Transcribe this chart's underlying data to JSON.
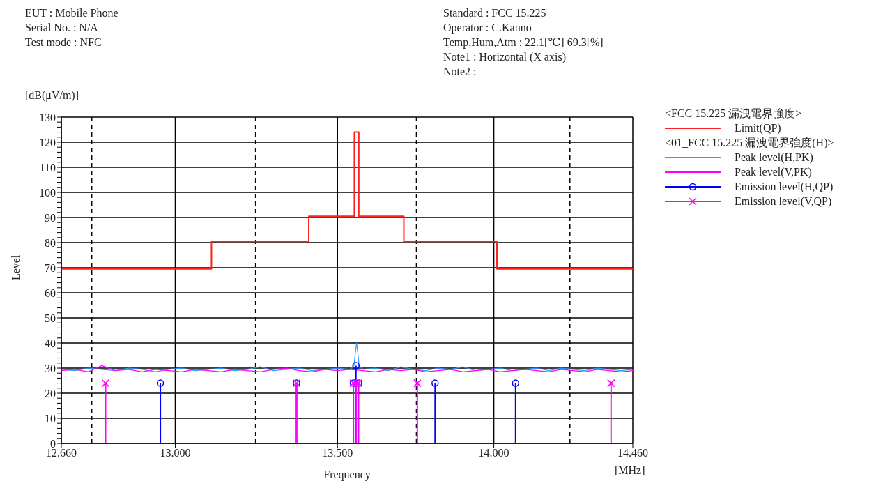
{
  "chart_data": {
    "type": "line",
    "xlabel": "Frequency",
    "ylabel": "Level",
    "legend_title": "<FCC 15.225 漏洩電界強度>",
    "legend": "right",
    "grid": true,
    "log": "x",
    "xlim": [
      12.66,
      14.46
    ],
    "xticks": [
      {
        "value": 12.66,
        "label": "12.660"
      },
      {
        "value": 13,
        "label": "13.000"
      },
      {
        "value": 13.5,
        "label": "13.500"
      },
      {
        "value": 14,
        "label": "14.000"
      },
      {
        "value": 14.46,
        "label": "14.460"
      }
    ],
    "ylim": [
      0,
      130
    ],
    "yticks": [
      0,
      {
        "value": 2,
        "label": null
      },
      {
        "value": 4,
        "label": null
      },
      {
        "value": 6,
        "label": null
      },
      {
        "value": 8,
        "label": null
      },
      10,
      {
        "value": 12,
        "label": null
      },
      {
        "value": 14,
        "label": null
      },
      {
        "value": 16,
        "label": null
      },
      {
        "value": 18,
        "label": null
      },
      20,
      {
        "value": 22,
        "label": null
      },
      {
        "value": 24,
        "label": null
      },
      {
        "value": 26,
        "label": null
      },
      {
        "value": 28,
        "label": null
      },
      30,
      {
        "value": 32,
        "label": null
      },
      {
        "value": 34,
        "label": null
      },
      {
        "value": 36,
        "label": null
      },
      {
        "value": 38,
        "label": null
      },
      40,
      {
        "value": 42,
        "label": null
      },
      {
        "value": 44,
        "label": null
      },
      {
        "value": 46,
        "label": null
      },
      {
        "value": 48,
        "label": null
      },
      50,
      {
        "value": 52,
        "label": null
      },
      {
        "value": 54,
        "label": null
      },
      {
        "value": 56,
        "label": null
      },
      {
        "value": 58,
        "label": null
      },
      60,
      {
        "value": 62,
        "label": null
      },
      {
        "value": 64,
        "label": null
      },
      {
        "value": 66,
        "label": null
      },
      {
        "value": 68,
        "label": null
      },
      70,
      {
        "value": 72,
        "label": null
      },
      {
        "value": 74,
        "label": null
      },
      {
        "value": 76,
        "label": null
      },
      {
        "value": 78,
        "label": null
      },
      80,
      {
        "value": 82,
        "label": null
      },
      {
        "value": 84,
        "label": null
      },
      {
        "value": 86,
        "label": null
      },
      {
        "value": 88,
        "label": null
      },
      90,
      {
        "value": 92,
        "label": null
      },
      {
        "value": 94,
        "label": null
      },
      {
        "value": 96,
        "label": null
      },
      {
        "value": 98,
        "label": null
      },
      100,
      {
        "value": 102,
        "label": null
      },
      {
        "value": 104,
        "label": null
      },
      {
        "value": 106,
        "label": null
      },
      {
        "value": 108,
        "label": null
      },
      110,
      {
        "value": 112,
        "label": null
      },
      {
        "value": 114,
        "label": null
      },
      {
        "value": 116,
        "label": null
      },
      {
        "value": 118,
        "label": null
      },
      120,
      {
        "value": 122,
        "label": null
      },
      {
        "value": 124,
        "label": null
      },
      {
        "value": 126,
        "label": null
      },
      {
        "value": 128,
        "label": null
      },
      130
    ],
    "ref_lines": [
      {
        "axis": "x",
        "value": 12.75,
        "line_style": "dashed",
        "color": "#000000"
      },
      {
        "axis": "x",
        "value": 13.245,
        "line_style": "dashed",
        "color": "#000000"
      },
      {
        "axis": "x",
        "value": 13.75,
        "line_style": "dashed",
        "color": "#000000"
      },
      {
        "axis": "x",
        "value": 14.25,
        "line_style": "dashed",
        "color": "#000000"
      }
    ],
    "annotations": [
      "EUT : Mobile Phone",
      "Serial No. : N/A",
      "Test mode : NFC",
      "Standard : FCC 15.225",
      "Operator : C.Kanno",
      "Temp,Hum,Atm : 22.1[℃] 69.3[%]",
      "Note1 : Horizontal (X axis)",
      "Note2 :",
      "[dB(μV/m)]",
      "[MHz]",
      "<01_FCC 15.225 漏洩電界強度(H)>"
    ],
    "series": [
      {
        "name": "Limit(QP)",
        "type": "step",
        "color": "#ff2020",
        "x": [
          12.66,
          13.11,
          13.41,
          13.553,
          13.567,
          13.71,
          14.01,
          14.46
        ],
        "values": [
          69.5,
          80.5,
          90.5,
          124,
          90.5,
          80.5,
          69.5,
          69.5
        ]
      },
      {
        "name": "Peak level(H,PK)",
        "color": "#3399ff",
        "x": [
          12.66,
          12.7,
          12.74,
          12.78,
          12.82,
          12.86,
          12.9,
          12.94,
          12.98,
          13.02,
          13.06,
          13.1,
          13.14,
          13.18,
          13.22,
          13.26,
          13.3,
          13.34,
          13.38,
          13.42,
          13.46,
          13.5,
          13.54,
          13.552,
          13.556,
          13.56,
          13.564,
          13.568,
          13.58,
          13.62,
          13.66,
          13.7,
          13.74,
          13.78,
          13.82,
          13.86,
          13.9,
          13.94,
          13.98,
          14.02,
          14.06,
          14.1,
          14.14,
          14.18,
          14.22,
          14.26,
          14.3,
          14.34,
          14.38,
          14.42,
          14.46
        ],
        "values": [
          29.5,
          29,
          30,
          29.5,
          29,
          30,
          29.5,
          28.5,
          29.5,
          30,
          29,
          29.5,
          30,
          29,
          29.5,
          30.5,
          29,
          29.5,
          30,
          29,
          29.5,
          30,
          29.5,
          31,
          36,
          40,
          36,
          31,
          29.5,
          30,
          29,
          30.5,
          29.5,
          29,
          30,
          29.5,
          30.5,
          29,
          29.5,
          30,
          29,
          29.5,
          30,
          29,
          30,
          29.5,
          29,
          30,
          29.5,
          29,
          29.5
        ]
      },
      {
        "name": "Peak level(V,PK)",
        "color": "#ff00ff",
        "x": [
          12.66,
          12.7,
          12.74,
          12.78,
          12.82,
          12.86,
          12.9,
          12.94,
          12.98,
          13.02,
          13.06,
          13.1,
          13.14,
          13.18,
          13.22,
          13.26,
          13.3,
          13.34,
          13.38,
          13.42,
          13.46,
          13.5,
          13.54,
          13.58,
          13.62,
          13.66,
          13.7,
          13.74,
          13.78,
          13.82,
          13.86,
          13.9,
          13.94,
          13.98,
          14.02,
          14.06,
          14.1,
          14.14,
          14.18,
          14.22,
          14.26,
          14.3,
          14.34,
          14.38,
          14.42,
          14.46
        ],
        "values": [
          29,
          29.5,
          28.5,
          31,
          29,
          29.5,
          28.5,
          29.5,
          29,
          28.5,
          29.5,
          29,
          28.5,
          29.5,
          29,
          28.5,
          29.5,
          30,
          29,
          28.5,
          29.5,
          29,
          29.5,
          29,
          28.5,
          29.5,
          29,
          29.5,
          28.5,
          29,
          29.5,
          28.5,
          29,
          29.5,
          28.5,
          29,
          29.5,
          29,
          28.5,
          29.5,
          29,
          28.5,
          29.5,
          29,
          28.5,
          29
        ]
      },
      {
        "name": "Emission level(H,QP)",
        "type": "lollipop",
        "marker": "circle",
        "color": "#0000ff",
        "x": [
          12.955,
          13.372,
          13.55,
          13.558,
          13.566,
          13.81,
          14.071
        ],
        "values": [
          24,
          24,
          24,
          31,
          24,
          24,
          24
        ]
      },
      {
        "name": "Emission level(V,QP)",
        "type": "lollipop",
        "marker": "cross",
        "color": "#ff00ff",
        "x": [
          12.791,
          13.372,
          13.55,
          13.559,
          13.565,
          13.753,
          14.387
        ],
        "values": [
          24,
          24,
          24,
          24,
          24,
          24,
          24
        ]
      }
    ]
  }
}
